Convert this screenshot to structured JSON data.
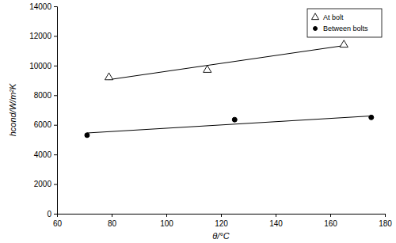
{
  "chart_data": {
    "type": "scatter",
    "xlabel": "θ/°C",
    "ylabel": "hcond/W/m²K",
    "xlim": [
      60,
      180
    ],
    "xticks": [
      60,
      80,
      100,
      120,
      140,
      160,
      180
    ],
    "ylim": [
      0,
      14000
    ],
    "yticks": [
      0,
      2000,
      4000,
      6000,
      8000,
      10000,
      12000,
      14000
    ],
    "grid": false,
    "legend": "upper right",
    "series": [
      {
        "name": "At bolt",
        "color": "#000000",
        "marker": "triangle-open",
        "x": [
          79,
          115,
          165
        ],
        "values": [
          9200,
          9700,
          11400
        ],
        "trendline": {
          "x": [
            79,
            165
          ],
          "values": [
            9050,
            11350
          ]
        }
      },
      {
        "name": "Between bolts",
        "color": "#000000",
        "marker": "circle",
        "x": [
          71,
          125,
          175
        ],
        "values": [
          5300,
          6350,
          6500
        ],
        "trendline": {
          "x": [
            71,
            175
          ],
          "values": [
            5450,
            6600
          ]
        }
      }
    ]
  }
}
